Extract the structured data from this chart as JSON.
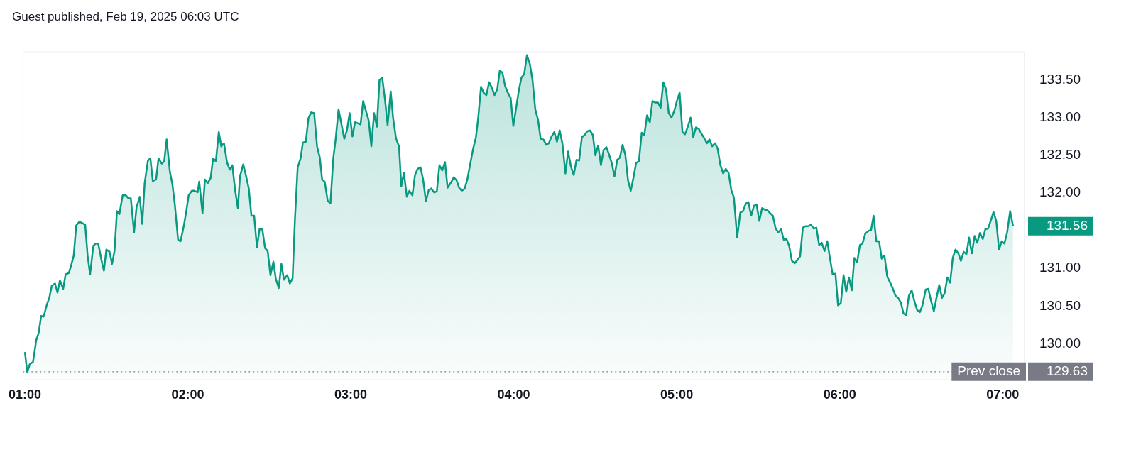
{
  "chart_data": {
    "type": "area",
    "title": "Guest published, Feb 19, 2025 06:03 UTC",
    "x": [
      1.0,
      1.015,
      1.03,
      1.05,
      1.07,
      1.085,
      1.1,
      1.115,
      1.135,
      1.15,
      1.165,
      1.185,
      1.2,
      1.215,
      1.235,
      1.25,
      1.27,
      1.285,
      1.3,
      1.315,
      1.335,
      1.37,
      1.385,
      1.4,
      1.42,
      1.435,
      1.45,
      1.47,
      1.485,
      1.5,
      1.52,
      1.535,
      1.55,
      1.565,
      1.58,
      1.6,
      1.62,
      1.635,
      1.65,
      1.67,
      1.685,
      1.705,
      1.72,
      1.735,
      1.755,
      1.77,
      1.785,
      1.805,
      1.82,
      1.84,
      1.855,
      1.87,
      1.89,
      1.905,
      1.92,
      1.94,
      1.955,
      1.975,
      1.99,
      2.005,
      2.025,
      2.04,
      2.06,
      2.07,
      2.09,
      2.105,
      2.122,
      2.14,
      2.155,
      2.172,
      2.19,
      2.205,
      2.222,
      2.24,
      2.257,
      2.273,
      2.29,
      2.307,
      2.32,
      2.34,
      2.356,
      2.374,
      2.39,
      2.407,
      2.424,
      2.44,
      2.457,
      2.474,
      2.49,
      2.507,
      2.525,
      2.54,
      2.558,
      2.574,
      2.59,
      2.61,
      2.626,
      2.643,
      2.657,
      2.674,
      2.692,
      2.706,
      2.724,
      2.74,
      2.757,
      2.775,
      2.793,
      2.81,
      2.824,
      2.84,
      2.858,
      2.875,
      2.893,
      2.907,
      2.925,
      2.943,
      2.96,
      2.976,
      2.993,
      3.01,
      3.026,
      3.06,
      3.076,
      3.093,
      3.11,
      3.126,
      3.143,
      3.16,
      3.176,
      3.193,
      3.21,
      3.226,
      3.245,
      3.26,
      3.278,
      3.296,
      3.31,
      3.326,
      3.344,
      3.36,
      3.378,
      3.394,
      3.41,
      3.428,
      3.444,
      3.461,
      3.478,
      3.494,
      3.511,
      3.528,
      3.544,
      3.561,
      3.578,
      3.594,
      3.615,
      3.632,
      3.649,
      3.665,
      3.682,
      3.699,
      3.715,
      3.735,
      3.751,
      3.768,
      3.782,
      3.799,
      3.815,
      3.832,
      3.849,
      3.865,
      3.882,
      3.899,
      3.914,
      3.93,
      3.947,
      3.964,
      3.981,
      3.997,
      4.014,
      4.031,
      4.047,
      4.064,
      4.081,
      4.099,
      4.115,
      4.132,
      4.149,
      4.165,
      4.182,
      4.199,
      4.215,
      4.232,
      4.249,
      4.265,
      4.282,
      4.299,
      4.317,
      4.333,
      4.351,
      4.368,
      4.385,
      4.401,
      4.418,
      4.435,
      4.451,
      4.468,
      4.485,
      4.501,
      4.518,
      4.535,
      4.551,
      4.568,
      4.585,
      4.601,
      4.618,
      4.635,
      4.651,
      4.668,
      4.685,
      4.701,
      4.718,
      4.735,
      4.751,
      4.768,
      4.785,
      4.801,
      4.818,
      4.835,
      4.851,
      4.868,
      4.885,
      4.901,
      4.918,
      4.935,
      4.951,
      4.968,
      4.985,
      5.001,
      5.018,
      5.035,
      5.051,
      5.068,
      5.085,
      5.101,
      5.118,
      5.135,
      5.151,
      5.168,
      5.185,
      5.201,
      5.218,
      5.235,
      5.251,
      5.268,
      5.285,
      5.301,
      5.318,
      5.335,
      5.351,
      5.371,
      5.39,
      5.407,
      5.424,
      5.44,
      5.457,
      5.474,
      5.49,
      5.507,
      5.524,
      5.54,
      5.557,
      5.574,
      5.59,
      5.607,
      5.624,
      5.64,
      5.657,
      5.674,
      5.69,
      5.707,
      5.724,
      5.74,
      5.757,
      5.774,
      5.79,
      5.807,
      5.824,
      5.84,
      5.857,
      5.874,
      5.89,
      5.907,
      5.924,
      5.94,
      5.957,
      5.974,
      5.99,
      6.007,
      6.024,
      6.04,
      6.057,
      6.074,
      6.09,
      6.107,
      6.124,
      6.14,
      6.157,
      6.178,
      6.193,
      6.208,
      6.225,
      6.242,
      6.258,
      6.275,
      6.292,
      6.308,
      6.325,
      6.342,
      6.358,
      6.375,
      6.392,
      6.408,
      6.425,
      6.442,
      6.458,
      6.475,
      6.492,
      6.508,
      6.528,
      6.544,
      6.561,
      6.578,
      6.594,
      6.611,
      6.628,
      6.644,
      6.661,
      6.678,
      6.694,
      6.711,
      6.728,
      6.744,
      6.761,
      6.778,
      6.794,
      6.811,
      6.828,
      6.844,
      6.861,
      6.878,
      6.894,
      6.911,
      6.928,
      6.944,
      6.961,
      6.978,
      6.994,
      7.011,
      7.028,
      7.046,
      7.064
    ],
    "series": [
      {
        "color": "#089981",
        "values": [
          129.89,
          129.62,
          129.73,
          129.76,
          130.05,
          130.15,
          130.37,
          130.36,
          130.52,
          130.61,
          130.77,
          130.8,
          130.68,
          130.84,
          130.73,
          130.92,
          130.94,
          131.05,
          131.17,
          131.57,
          131.62,
          131.58,
          131.17,
          130.92,
          131.3,
          131.33,
          131.33,
          131.11,
          130.97,
          131.25,
          131.22,
          131.06,
          131.23,
          131.76,
          131.72,
          131.97,
          131.97,
          131.93,
          131.93,
          131.48,
          131.81,
          131.95,
          131.59,
          132.13,
          132.43,
          132.46,
          132.16,
          132.18,
          132.46,
          132.39,
          132.42,
          132.71,
          132.28,
          132.12,
          131.85,
          131.38,
          131.36,
          131.56,
          131.75,
          131.97,
          132.03,
          132.03,
          132.01,
          132.15,
          131.73,
          132.18,
          132.13,
          132.2,
          132.46,
          132.42,
          132.81,
          132.62,
          132.66,
          132.41,
          132.31,
          132.37,
          132.04,
          131.8,
          132.22,
          132.38,
          132.24,
          132.06,
          131.7,
          131.7,
          131.28,
          131.52,
          131.52,
          131.27,
          131.23,
          130.91,
          131.09,
          130.86,
          130.74,
          131.06,
          130.85,
          130.91,
          130.8,
          130.87,
          131.64,
          132.34,
          132.46,
          132.67,
          132.68,
          132.99,
          133.07,
          133.06,
          132.62,
          132.47,
          132.18,
          132.15,
          131.9,
          131.86,
          132.47,
          132.71,
          133.11,
          132.91,
          132.72,
          132.83,
          133.06,
          132.75,
          132.94,
          132.91,
          133.22,
          133.09,
          132.96,
          132.62,
          133.06,
          132.88,
          133.5,
          133.53,
          133.24,
          132.9,
          133.35,
          132.99,
          132.72,
          132.62,
          132.09,
          132.27,
          131.95,
          132.03,
          131.97,
          132.24,
          132.32,
          132.34,
          132.18,
          131.89,
          132.04,
          132.06,
          132.01,
          132.02,
          132.37,
          132.3,
          132.41,
          132.07,
          132.14,
          132.21,
          132.17,
          132.07,
          132.03,
          132.06,
          132.18,
          132.41,
          132.59,
          132.74,
          133.0,
          133.41,
          133.33,
          133.3,
          133.47,
          133.4,
          133.3,
          133.38,
          133.62,
          133.6,
          133.42,
          133.33,
          133.26,
          132.89,
          133.12,
          133.36,
          133.53,
          133.58,
          133.83,
          133.71,
          133.5,
          133.11,
          132.97,
          132.72,
          132.71,
          132.64,
          132.66,
          132.75,
          132.81,
          132.68,
          132.83,
          132.65,
          132.26,
          132.55,
          132.35,
          132.24,
          132.44,
          132.43,
          132.74,
          132.77,
          132.82,
          132.83,
          132.77,
          132.5,
          132.63,
          132.37,
          132.57,
          132.61,
          132.51,
          132.4,
          132.22,
          132.44,
          132.47,
          132.64,
          132.5,
          132.17,
          132.03,
          132.21,
          132.4,
          132.42,
          132.8,
          132.77,
          133.03,
          132.94,
          133.22,
          133.2,
          133.2,
          133.13,
          133.47,
          133.37,
          133.06,
          133.0,
          133.09,
          133.22,
          133.33,
          132.81,
          132.78,
          132.88,
          133.0,
          132.74,
          132.87,
          132.85,
          132.79,
          132.73,
          132.66,
          132.71,
          132.62,
          132.66,
          132.59,
          132.37,
          132.26,
          132.32,
          132.27,
          132.04,
          131.94,
          131.41,
          131.74,
          131.76,
          131.86,
          131.88,
          131.7,
          131.83,
          131.85,
          131.63,
          131.8,
          131.78,
          131.77,
          131.73,
          131.7,
          131.53,
          131.48,
          131.52,
          131.38,
          131.39,
          131.3,
          131.1,
          131.07,
          131.11,
          131.16,
          131.54,
          131.56,
          131.56,
          131.58,
          131.53,
          131.54,
          131.31,
          131.34,
          131.23,
          131.36,
          131.14,
          130.92,
          130.93,
          130.51,
          130.54,
          130.91,
          130.69,
          130.88,
          130.71,
          131.14,
          131.08,
          131.31,
          131.33,
          131.46,
          131.5,
          131.51,
          131.7,
          131.36,
          131.36,
          131.13,
          131.17,
          130.89,
          130.82,
          130.74,
          130.64,
          130.61,
          130.55,
          130.4,
          130.38,
          130.64,
          130.71,
          130.57,
          130.45,
          130.42,
          130.51,
          130.72,
          130.73,
          130.57,
          130.43,
          130.61,
          130.78,
          130.61,
          130.67,
          130.88,
          130.81,
          131.14,
          131.25,
          131.2,
          131.1,
          131.22,
          131.19,
          131.41,
          131.2,
          131.43,
          131.34,
          131.47,
          131.39,
          131.52,
          131.53,
          131.64,
          131.75,
          131.63,
          131.25,
          131.36,
          131.33,
          131.48,
          131.76,
          131.56
        ]
      }
    ],
    "xlim": [
      0.99,
      7.13
    ],
    "xticks": [
      {
        "value": 1,
        "label": "01:00"
      },
      {
        "value": 2,
        "label": "02:00"
      },
      {
        "value": 3,
        "label": "03:00"
      },
      {
        "value": 4,
        "label": "04:00"
      },
      {
        "value": 5,
        "label": "05:00"
      },
      {
        "value": 6,
        "label": "06:00"
      },
      {
        "value": 7,
        "label": "07:00"
      }
    ],
    "ylim": [
      129.53,
      133.87
    ],
    "yticks": [
      {
        "value": 130,
        "label": "130.00"
      },
      {
        "value": 130.5,
        "label": "130.50"
      },
      {
        "value": 131,
        "label": "131.00"
      },
      {
        "value": 132,
        "label": "132.00"
      },
      {
        "value": 132.5,
        "label": "132.50"
      },
      {
        "value": 133,
        "label": "133.00"
      },
      {
        "value": 133.5,
        "label": "133.50"
      }
    ],
    "ref_lines": [
      {
        "axis": "y",
        "value": 129.63,
        "label": "Prev close",
        "color": "#787b86",
        "line_style": "dotted"
      }
    ],
    "annotations": [
      "131.56",
      "129.63"
    ],
    "grid": false,
    "legend": false,
    "marker": "none",
    "line_style": "solid"
  }
}
